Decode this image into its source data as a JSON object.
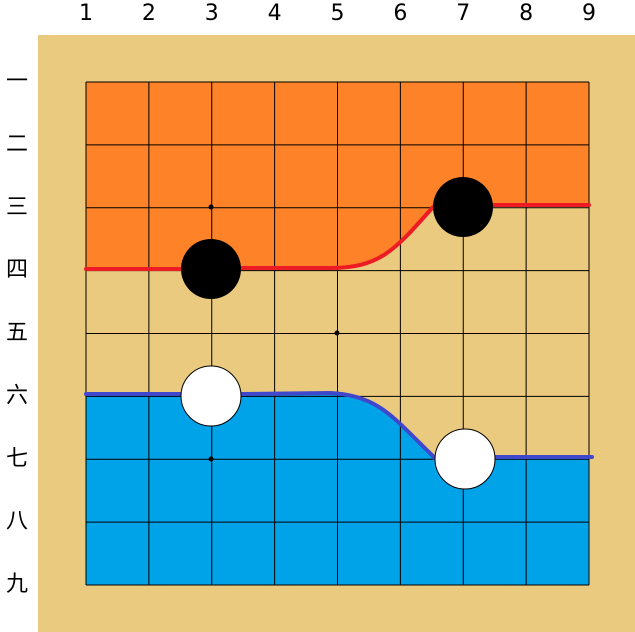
{
  "column_labels": [
    "1",
    "2",
    "3",
    "4",
    "5",
    "6",
    "7",
    "8",
    "9"
  ],
  "row_labels": [
    "一",
    "二",
    "三",
    "四",
    "五",
    "六",
    "七",
    "八",
    "九"
  ]
}
